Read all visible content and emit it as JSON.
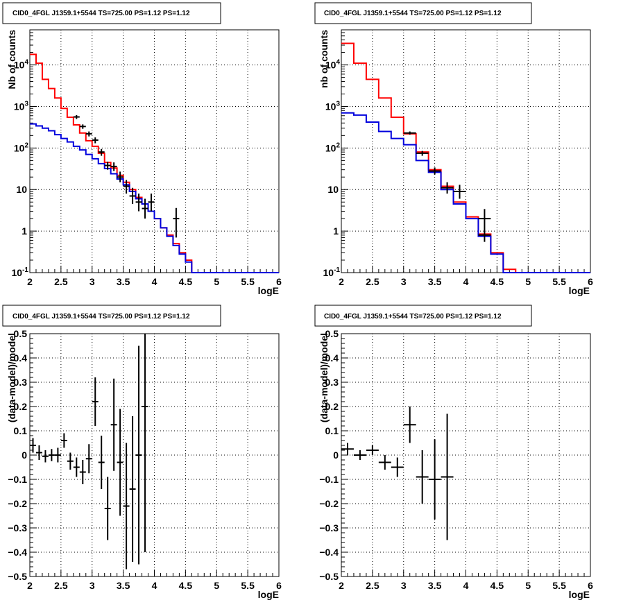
{
  "colors": {
    "data": "#000000",
    "model_total": "#ff0000",
    "model_component": "#0000dd",
    "grid": "#000000",
    "background": "#ffffff"
  },
  "chart_data": [
    {
      "type": "histogram",
      "title": "CID0_4FGL J1359.1+5544 TS=725.00 PS=1.12 PS=1.12",
      "xlabel": "logE",
      "ylabel": "Nb of counts",
      "yscale": "log",
      "xlim": [
        2,
        6
      ],
      "ylim": [
        0.1,
        70000
      ],
      "grid": true,
      "xticks": [
        "2",
        "2.5",
        "3",
        "3.5",
        "4",
        "4.5",
        "5",
        "5.5",
        "6"
      ],
      "yticks": [
        {
          "v": 0.1,
          "label": "10",
          "exp": "-1"
        },
        {
          "v": 1,
          "label": "1",
          "exp": ""
        },
        {
          "v": 10,
          "label": "10",
          "exp": ""
        },
        {
          "v": 100,
          "label": "10",
          "exp": "2"
        },
        {
          "v": 1000,
          "label": "10",
          "exp": "3"
        },
        {
          "v": 10000,
          "label": "10",
          "exp": "4"
        }
      ],
      "bin_edges": [
        2,
        2.1,
        2.2,
        2.3,
        2.4,
        2.5,
        2.6,
        2.7,
        2.8,
        2.9,
        3,
        3.1,
        3.2,
        3.3,
        3.4,
        3.5,
        3.6,
        3.7,
        3.8,
        3.9,
        4,
        4.1,
        4.2,
        4.3,
        4.4,
        4.5,
        4.6,
        4.7,
        4.8,
        4.9,
        5,
        5.1,
        5.2,
        5.3,
        5.4,
        5.5,
        5.6,
        5.7,
        5.8,
        5.9,
        6
      ],
      "series": [
        {
          "role": "model_total",
          "values": [
            18000,
            11000,
            4500,
            2700,
            1600,
            900,
            550,
            360,
            230,
            150,
            110,
            75,
            45,
            33,
            22,
            15,
            10,
            6.5,
            4.5,
            3,
            2,
            1.2,
            0.8,
            0.5,
            0.3,
            0.2,
            0.1,
            0.1,
            0.1,
            0.1,
            0.1,
            0.1,
            0.1,
            0.1,
            0.1,
            0.1,
            0.1,
            0.1,
            0.1,
            0.1
          ]
        },
        {
          "role": "model_component",
          "values": [
            380,
            340,
            300,
            260,
            210,
            170,
            140,
            110,
            90,
            70,
            55,
            42,
            32,
            24,
            18,
            13,
            9,
            6,
            4.5,
            3,
            2,
            1.2,
            0.75,
            0.45,
            0.28,
            0.18,
            0.1,
            0.1,
            0.1,
            0.1,
            0.1,
            0.1,
            0.1,
            0.1,
            0.1,
            0.1,
            0.1,
            0.1,
            0.1,
            0.1
          ]
        },
        {
          "role": "data",
          "points": [
            {
              "x": 2.75,
              "y": 560,
              "lo": 500,
              "hi": 620
            },
            {
              "x": 2.85,
              "y": 330,
              "lo": 290,
              "hi": 370
            },
            {
              "x": 2.95,
              "y": 220,
              "lo": 190,
              "hi": 250
            },
            {
              "x": 3.05,
              "y": 155,
              "lo": 130,
              "hi": 180
            },
            {
              "x": 3.15,
              "y": 80,
              "lo": 65,
              "hi": 95
            },
            {
              "x": 3.25,
              "y": 38,
              "lo": 30,
              "hi": 47
            },
            {
              "x": 3.35,
              "y": 36,
              "lo": 28,
              "hi": 45
            },
            {
              "x": 3.45,
              "y": 20,
              "lo": 15,
              "hi": 27
            },
            {
              "x": 3.55,
              "y": 12,
              "lo": 8,
              "hi": 17
            },
            {
              "x": 3.65,
              "y": 7,
              "lo": 4.5,
              "hi": 11
            },
            {
              "x": 3.75,
              "y": 5,
              "lo": 3,
              "hi": 8
            },
            {
              "x": 3.85,
              "y": 3.5,
              "lo": 2,
              "hi": 6
            },
            {
              "x": 3.95,
              "y": 5,
              "lo": 3,
              "hi": 8
            },
            {
              "x": 4.35,
              "y": 2,
              "lo": 0.7,
              "hi": 3.6
            }
          ]
        }
      ]
    },
    {
      "type": "histogram",
      "title": "CID0_4FGL J1359.1+5544 TS=725.00 PS=1.12 PS=1.12",
      "xlabel": "logE",
      "ylabel": "nb of counts",
      "yscale": "log",
      "xlim": [
        2,
        6
      ],
      "ylim": [
        0.1,
        70000
      ],
      "grid": true,
      "xticks": [
        "2",
        "2.5",
        "3",
        "3.5",
        "4",
        "4.5",
        "5",
        "5.5",
        "6"
      ],
      "yticks": [
        {
          "v": 0.1,
          "label": "10",
          "exp": "-1"
        },
        {
          "v": 1,
          "label": "1",
          "exp": ""
        },
        {
          "v": 10,
          "label": "10",
          "exp": ""
        },
        {
          "v": 100,
          "label": "10",
          "exp": "2"
        },
        {
          "v": 1000,
          "label": "10",
          "exp": "3"
        },
        {
          "v": 10000,
          "label": "10",
          "exp": "4"
        }
      ],
      "bin_edges": [
        2,
        2.2,
        2.4,
        2.6,
        2.8,
        3,
        3.2,
        3.4,
        3.6,
        3.8,
        4,
        4.2,
        4.4,
        4.6,
        4.8,
        5,
        5.2,
        5.4,
        5.6,
        5.8,
        6
      ],
      "series": [
        {
          "role": "model_total",
          "values": [
            33000,
            11000,
            4500,
            1600,
            550,
            220,
            80,
            30,
            12,
            5,
            2.2,
            0.85,
            0.3,
            0.12,
            0.1,
            0.1,
            0.1,
            0.1,
            0.1,
            0.1
          ]
        },
        {
          "role": "model_component",
          "values": [
            700,
            620,
            420,
            250,
            170,
            120,
            50,
            26,
            10,
            4.5,
            2,
            0.75,
            0.28,
            0.1,
            0.1,
            0.1,
            0.1,
            0.1,
            0.1,
            0.1
          ]
        },
        {
          "role": "data",
          "points": [
            {
              "x": 3.1,
              "y": 230,
              "lo": 210,
              "hi": 250
            },
            {
              "x": 3.3,
              "y": 75,
              "lo": 65,
              "hi": 85
            },
            {
              "x": 3.5,
              "y": 28,
              "lo": 23,
              "hi": 34
            },
            {
              "x": 3.7,
              "y": 11,
              "lo": 8,
              "hi": 15
            },
            {
              "x": 3.9,
              "y": 9,
              "lo": 6,
              "hi": 13
            },
            {
              "x": 4.3,
              "y": 2,
              "lo": 0.9,
              "hi": 3.4
            },
            {
              "x": 4.3,
              "y": 0.8,
              "lo": 0.55,
              "hi": 1.0
            }
          ]
        }
      ]
    },
    {
      "type": "scatter",
      "title": "CID0_4FGL J1359.1+5544 TS=725.00 PS=1.12 PS=1.12",
      "xlabel": "logE",
      "ylabel": "(data-model)/model",
      "xlim": [
        2,
        6
      ],
      "ylim": [
        -0.5,
        0.5
      ],
      "grid": true,
      "xticks": [
        "2",
        "2.5",
        "3",
        "3.5",
        "4",
        "4.5",
        "5",
        "5.5",
        "6"
      ],
      "yticks": [
        {
          "v": -0.5,
          "label": "−0.5"
        },
        {
          "v": -0.4,
          "label": "−0.4"
        },
        {
          "v": -0.3,
          "label": "−0.3"
        },
        {
          "v": -0.2,
          "label": "−0.2"
        },
        {
          "v": -0.1,
          "label": "−0.1"
        },
        {
          "v": 0,
          "label": "0"
        },
        {
          "v": 0.1,
          "label": "0.1"
        },
        {
          "v": 0.2,
          "label": "0.2"
        },
        {
          "v": 0.3,
          "label": "0.3"
        },
        {
          "v": 0.4,
          "label": "0.4"
        },
        {
          "v": 0.5,
          "label": "0.5"
        }
      ],
      "series": [
        {
          "role": "data",
          "points": [
            {
              "x": 2.05,
              "y": 0.04,
              "err": 0.03
            },
            {
              "x": 2.15,
              "y": 0.01,
              "err": 0.03
            },
            {
              "x": 2.25,
              "y": -0.005,
              "err": 0.025
            },
            {
              "x": 2.35,
              "y": 0.0,
              "err": 0.025
            },
            {
              "x": 2.45,
              "y": 0.0,
              "err": 0.03
            },
            {
              "x": 2.55,
              "y": 0.06,
              "err": 0.03
            },
            {
              "x": 2.65,
              "y": -0.025,
              "err": 0.035
            },
            {
              "x": 2.75,
              "y": -0.05,
              "err": 0.04
            },
            {
              "x": 2.85,
              "y": -0.07,
              "err": 0.05
            },
            {
              "x": 2.95,
              "y": -0.015,
              "err": 0.06
            },
            {
              "x": 3.05,
              "y": 0.22,
              "err": 0.1
            },
            {
              "x": 3.15,
              "y": -0.03,
              "err": 0.11
            },
            {
              "x": 3.25,
              "y": -0.22,
              "err": 0.13
            },
            {
              "x": 3.35,
              "y": 0.125,
              "err": 0.19
            },
            {
              "x": 3.45,
              "y": -0.03,
              "err": 0.22
            },
            {
              "x": 3.55,
              "y": -0.21,
              "err": 0.26
            },
            {
              "x": 3.65,
              "y": -0.14,
              "err": 0.3
            },
            {
              "x": 3.75,
              "y": 0.0,
              "err": 0.45
            },
            {
              "x": 3.85,
              "y": 0.2,
              "err": 0.6
            }
          ]
        }
      ]
    },
    {
      "type": "scatter",
      "title": "CID0_4FGL J1359.1+5544 TS=725.00 PS=1.12 PS=1.12",
      "xlabel": "logE",
      "ylabel": "(data-model)/model",
      "xlim": [
        2,
        6
      ],
      "ylim": [
        -0.5,
        0.5
      ],
      "grid": true,
      "xticks": [
        "2",
        "2.5",
        "3",
        "3.5",
        "4",
        "4.5",
        "5",
        "5.5",
        "6"
      ],
      "yticks": [
        {
          "v": -0.5,
          "label": "−0.5"
        },
        {
          "v": -0.4,
          "label": "−0.4"
        },
        {
          "v": -0.3,
          "label": "−0.3"
        },
        {
          "v": -0.2,
          "label": "−0.2"
        },
        {
          "v": -0.1,
          "label": "−0.1"
        },
        {
          "v": 0,
          "label": "0"
        },
        {
          "v": 0.1,
          "label": "0.1"
        },
        {
          "v": 0.2,
          "label": "0.2"
        },
        {
          "v": 0.3,
          "label": "0.3"
        },
        {
          "v": 0.4,
          "label": "0.4"
        },
        {
          "v": 0.5,
          "label": "0.5"
        }
      ],
      "series": [
        {
          "role": "data",
          "points": [
            {
              "x": 2.1,
              "y": 0.025,
              "err": 0.025
            },
            {
              "x": 2.3,
              "y": 0.0,
              "err": 0.02
            },
            {
              "x": 2.5,
              "y": 0.02,
              "err": 0.02
            },
            {
              "x": 2.7,
              "y": -0.03,
              "err": 0.03
            },
            {
              "x": 2.9,
              "y": -0.05,
              "err": 0.04
            },
            {
              "x": 3.1,
              "y": 0.125,
              "err": 0.075
            },
            {
              "x": 3.3,
              "y": -0.09,
              "err": 0.11
            },
            {
              "x": 3.5,
              "y": -0.1,
              "err": 0.165
            },
            {
              "x": 3.7,
              "y": -0.09,
              "err": 0.26
            }
          ]
        }
      ]
    }
  ]
}
